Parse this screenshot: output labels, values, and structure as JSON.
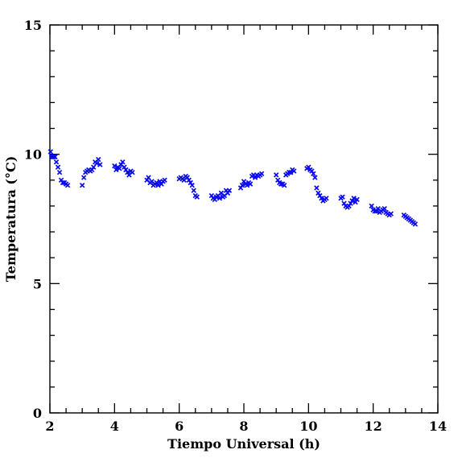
{
  "chart_data": {
    "type": "scatter",
    "title": "",
    "xlabel": "Tiempo Universal (h)",
    "ylabel": "Temperatura (°C)",
    "xlim": [
      2,
      14
    ],
    "ylim": [
      0,
      15
    ],
    "x_ticks": [
      2,
      4,
      6,
      8,
      10,
      12,
      14
    ],
    "y_ticks": [
      0,
      5,
      10,
      15
    ],
    "grid": false,
    "marker": "x",
    "marker_color": "#0a0af0",
    "series": [
      {
        "x": [
          2.02,
          2.05,
          2.08,
          2.12,
          2.16,
          2.2,
          2.25,
          2.3,
          2.35,
          2.4,
          2.45,
          2.5,
          2.55,
          3.0,
          3.05,
          3.1,
          3.15,
          3.2,
          3.25,
          3.3,
          3.35,
          3.4,
          3.45,
          3.5,
          3.55,
          4.0,
          4.05,
          4.1,
          4.15,
          4.2,
          4.25,
          4.3,
          4.35,
          4.4,
          4.45,
          4.5,
          4.55,
          5.0,
          5.05,
          5.1,
          5.15,
          5.2,
          5.25,
          5.3,
          5.35,
          5.4,
          5.45,
          5.5,
          5.55,
          6.0,
          6.05,
          6.1,
          6.15,
          6.2,
          6.25,
          6.3,
          6.35,
          6.4,
          6.45,
          6.5,
          6.55,
          7.0,
          7.05,
          7.1,
          7.15,
          7.2,
          7.25,
          7.3,
          7.35,
          7.4,
          7.45,
          7.5,
          7.55,
          7.9,
          7.95,
          8.0,
          8.05,
          8.1,
          8.15,
          8.2,
          8.25,
          8.3,
          8.35,
          8.4,
          8.45,
          8.5,
          8.55,
          9.0,
          9.05,
          9.1,
          9.15,
          9.2,
          9.25,
          9.3,
          9.35,
          9.4,
          9.45,
          9.5,
          9.55,
          9.95,
          10.0,
          10.05,
          10.1,
          10.15,
          10.2,
          10.25,
          10.3,
          10.35,
          10.4,
          10.45,
          10.5,
          10.55,
          11.0,
          11.05,
          11.1,
          11.15,
          11.2,
          11.25,
          11.3,
          11.35,
          11.4,
          11.45,
          11.5,
          11.95,
          12.0,
          12.05,
          12.1,
          12.15,
          12.2,
          12.25,
          12.3,
          12.35,
          12.4,
          12.45,
          12.5,
          12.55,
          12.95,
          13.0,
          13.05,
          13.1,
          13.15,
          13.2,
          13.25,
          13.3
        ],
        "y": [
          10.1,
          9.9,
          9.9,
          9.9,
          9.9,
          9.7,
          9.5,
          9.3,
          9.0,
          8.9,
          8.9,
          8.85,
          8.8,
          8.8,
          9.1,
          9.3,
          9.35,
          9.4,
          9.35,
          9.4,
          9.5,
          9.7,
          9.65,
          9.8,
          9.6,
          9.55,
          9.4,
          9.5,
          9.45,
          9.6,
          9.7,
          9.5,
          9.4,
          9.3,
          9.2,
          9.35,
          9.3,
          9.0,
          9.1,
          8.9,
          8.95,
          8.8,
          8.85,
          8.9,
          8.8,
          8.95,
          8.85,
          8.95,
          9.0,
          9.05,
          9.1,
          9.05,
          9.0,
          9.15,
          9.1,
          9.0,
          8.9,
          8.8,
          8.6,
          8.4,
          8.35,
          8.4,
          8.3,
          8.25,
          8.35,
          8.4,
          8.3,
          8.5,
          8.35,
          8.4,
          8.6,
          8.5,
          8.6,
          8.7,
          8.8,
          8.95,
          8.85,
          8.8,
          8.9,
          8.85,
          9.15,
          9.2,
          9.1,
          9.2,
          9.15,
          9.2,
          9.25,
          9.2,
          9.0,
          8.9,
          8.85,
          8.85,
          8.8,
          9.2,
          9.25,
          9.3,
          9.3,
          9.4,
          9.35,
          9.45,
          9.5,
          9.4,
          9.35,
          9.25,
          9.1,
          8.7,
          8.5,
          8.4,
          8.3,
          8.2,
          8.25,
          8.3,
          8.3,
          8.35,
          8.1,
          8.0,
          7.95,
          8.0,
          8.1,
          8.2,
          8.3,
          8.15,
          8.25,
          8.0,
          7.85,
          7.8,
          7.8,
          7.9,
          7.75,
          7.8,
          7.85,
          7.9,
          7.75,
          7.7,
          7.65,
          7.7,
          7.65,
          7.6,
          7.55,
          7.5,
          7.45,
          7.4,
          7.35,
          7.3
        ]
      }
    ]
  }
}
